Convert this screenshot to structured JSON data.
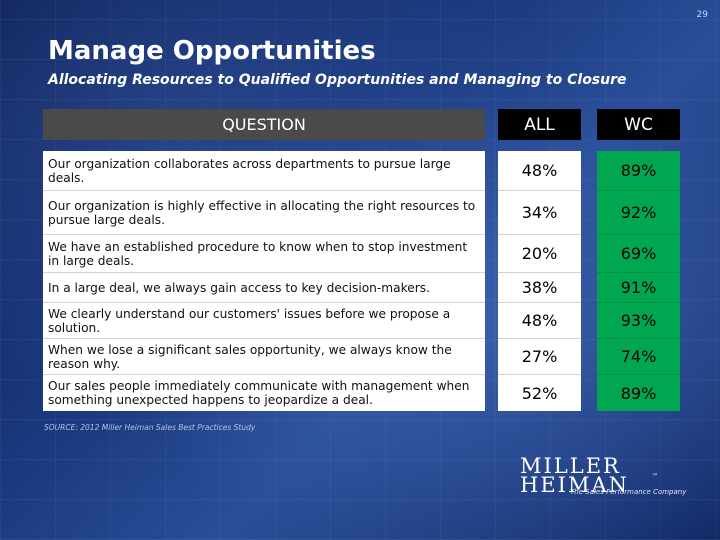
{
  "page_number": "29",
  "title": "Manage Opportunities",
  "subtitle": "Allocating Resources to Qualified Opportunities and Managing to Closure",
  "headers": {
    "question": "QUESTION",
    "all": "ALL",
    "wc": "WC"
  },
  "rows": [
    {
      "question": "Our organization collaborates across departments to pursue large deals.",
      "all": "48%",
      "wc": "89%"
    },
    {
      "question": "Our organization is highly effective in allocating the right resources to pursue large deals.",
      "all": "34%",
      "wc": "92%"
    },
    {
      "question": "We have an established procedure to know when to stop investment in large deals.",
      "all": "20%",
      "wc": "69%"
    },
    {
      "question": "In a large deal, we always gain access to key decision-makers.",
      "all": "38%",
      "wc": "91%"
    },
    {
      "question": "We clearly understand our customers' issues before we propose a solution.",
      "all": "48%",
      "wc": "93%"
    },
    {
      "question": "When we lose a significant sales opportunity, we always know the reason why.",
      "all": "27%",
      "wc": "74%"
    },
    {
      "question": "Our sales people immediately communicate with management when something unexpected happens to jeopardize a deal.",
      "all": "52%",
      "wc": "89%"
    }
  ],
  "source": "SOURCE: 2012 Miller Heiman Sales Best Practices Study",
  "logo": {
    "line1": "MILLER",
    "line2": "HEIMAN",
    "trademark": "™",
    "tagline": "The Sales Performance Company"
  },
  "colors": {
    "wc_column": "#00a650",
    "header_question": "#4a4a4a",
    "header_metric": "#000000"
  }
}
